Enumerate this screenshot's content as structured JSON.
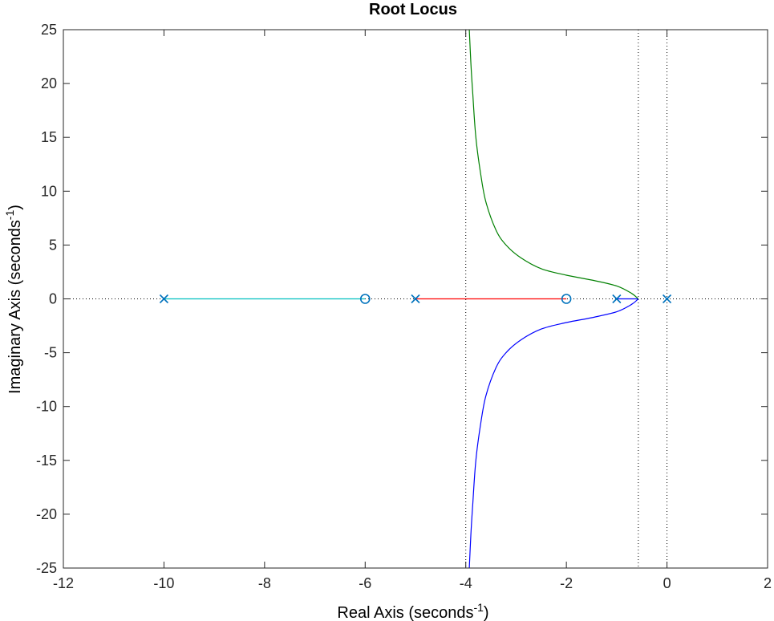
{
  "chart_data": {
    "type": "line",
    "title": "Root Locus",
    "xlabel": "Real Axis (seconds",
    "ylabel": "Imaginary Axis (seconds",
    "label_exponent": "-1",
    "label_close": ")",
    "xlim": [
      -12,
      2
    ],
    "ylim": [
      -25,
      25
    ],
    "xticks": [
      -12,
      -10,
      -8,
      -6,
      -4,
      -2,
      0,
      2
    ],
    "yticks": [
      -25,
      -20,
      -15,
      -10,
      -5,
      0,
      5,
      10,
      15,
      20,
      25
    ],
    "xtick_labels": [
      "-12",
      "-10",
      "-8",
      "-6",
      "-4",
      "-2",
      "0",
      "2"
    ],
    "ytick_labels": [
      "-25",
      "-20",
      "-15",
      "-10",
      "-5",
      "0",
      "5",
      "10",
      "15",
      "20",
      "25"
    ],
    "grid": false,
    "poles": [
      {
        "x": -10,
        "y": 0
      },
      {
        "x": -5,
        "y": 0
      },
      {
        "x": -1,
        "y": 0
      },
      {
        "x": 0,
        "y": 0
      }
    ],
    "zeros": [
      {
        "x": -6,
        "y": 0
      },
      {
        "x": -2,
        "y": 0
      }
    ],
    "marker_color": "#0072bd",
    "branches": [
      {
        "color": "#00bfbf",
        "points": [
          [
            -10,
            0
          ],
          [
            -6,
            0
          ]
        ]
      },
      {
        "color": "#ff0000",
        "points": [
          [
            -5,
            0
          ],
          [
            -2,
            0
          ]
        ]
      },
      {
        "color": "#0000ff",
        "points": [
          [
            -1,
            0
          ],
          [
            -0.57,
            0
          ]
        ]
      },
      {
        "color": "#008000",
        "points": [
          [
            -0.57,
            0
          ],
          [
            -0.7,
            0.5
          ],
          [
            -1.0,
            1.2
          ],
          [
            -1.5,
            1.75
          ],
          [
            -2.0,
            2.2
          ],
          [
            -2.5,
            2.8
          ],
          [
            -2.9,
            3.8
          ],
          [
            -3.2,
            5.0
          ],
          [
            -3.4,
            6.4
          ],
          [
            -3.6,
            9.0
          ],
          [
            -3.7,
            11.5
          ],
          [
            -3.8,
            15.0
          ],
          [
            -3.86,
            19.0
          ],
          [
            -3.9,
            22.0
          ],
          [
            -3.93,
            25.0
          ]
        ]
      },
      {
        "color": "#0000ff",
        "points": [
          [
            -0.57,
            0
          ],
          [
            -0.7,
            -0.5
          ],
          [
            -1.0,
            -1.2
          ],
          [
            -1.5,
            -1.75
          ],
          [
            -2.0,
            -2.2
          ],
          [
            -2.5,
            -2.8
          ],
          [
            -2.9,
            -3.8
          ],
          [
            -3.2,
            -5.0
          ],
          [
            -3.4,
            -6.4
          ],
          [
            -3.6,
            -9.0
          ],
          [
            -3.7,
            -11.5
          ],
          [
            -3.8,
            -15.0
          ],
          [
            -3.86,
            -19.0
          ],
          [
            -3.9,
            -22.0
          ],
          [
            -3.93,
            -25.0
          ]
        ]
      }
    ],
    "asymptote_x": -4,
    "breakaway_x": -0.57,
    "reference_lines": {
      "vertical_x": 0,
      "horizontal_y": 0
    }
  }
}
